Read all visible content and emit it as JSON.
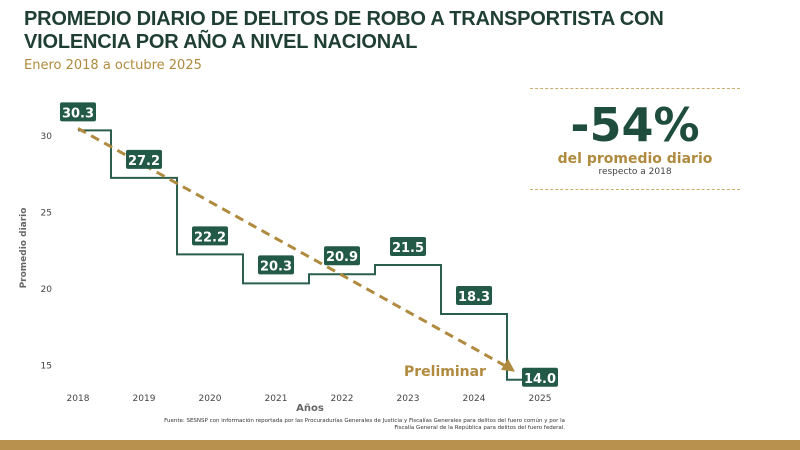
{
  "title": "PROMEDIO DIARIO DE DELITOS DE ROBO A TRANSPORTISTA CON VIOLENCIA POR AÑO A NIVEL NACIONAL",
  "subtitle": "Enero 2018 a octubre 2025",
  "kpi": {
    "value": "-54%",
    "line1": "del promedio diario",
    "line2": "respecto a 2018"
  },
  "source": "Fuente: SESNSP con información reportada por las Procuradurías Generales de Justicia y Fiscalías Generales para delitos del fuero común y por la Fiscalía General de la República para delitos del fuero federal.",
  "colors": {
    "line": "#2b5e4b",
    "label_bg": "#235a47",
    "trend": "#b08a3e",
    "band": "#b8914f"
  },
  "chart_data": {
    "type": "line",
    "step": true,
    "xlabel": "Años",
    "ylabel": "Promedio diario",
    "categories": [
      "2018",
      "2019",
      "2020",
      "2021",
      "2022",
      "2023",
      "2024",
      "2025"
    ],
    "values": [
      30.3,
      27.2,
      22.2,
      20.3,
      20.9,
      21.5,
      18.3,
      14.0
    ],
    "data_labels": [
      "30.3",
      "27.2",
      "22.2",
      "20.3",
      "20.9",
      "21.5",
      "18.3",
      "14.0"
    ],
    "yticks": [
      15,
      20,
      25,
      30
    ],
    "ylim": [
      13.5,
      31.5
    ],
    "trend": {
      "style": "dashed",
      "from": [
        "2018",
        30.3
      ],
      "to": [
        "2025",
        14.0
      ]
    },
    "annotation": "Preliminar",
    "grid": false
  }
}
